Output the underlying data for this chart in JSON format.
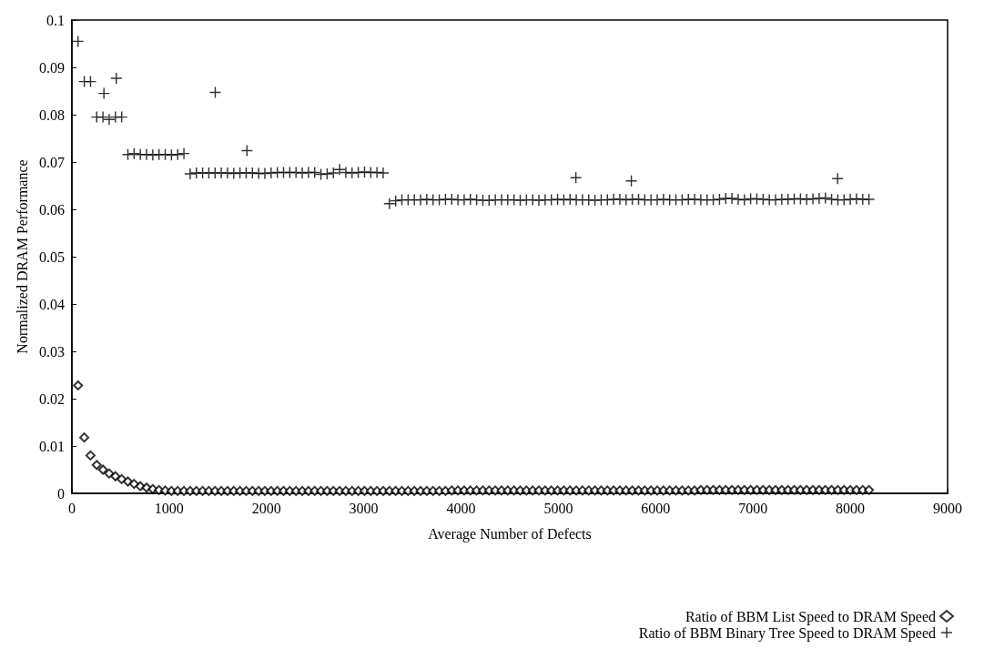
{
  "chart_data": {
    "type": "scatter",
    "xlabel": "Average Number of Defects",
    "ylabel": "Normalized DRAM Performance",
    "xlim": [
      0,
      9000
    ],
    "xticks": [
      0,
      1000,
      2000,
      3000,
      4000,
      5000,
      6000,
      7000,
      8000,
      9000
    ],
    "ylim": [
      0,
      0.1
    ],
    "yticks": [
      0,
      0.01,
      0.02,
      0.03,
      0.04,
      0.05,
      0.06,
      0.07,
      0.08,
      0.09,
      0.1
    ],
    "grid": false,
    "legend": "bottom right",
    "series": [
      {
        "name": "Ratio of BBM List Speed to DRAM Speed",
        "color": "#000000",
        "marker": "diamond",
        "x": [
          64,
          128,
          192,
          256,
          320,
          384,
          448,
          512,
          576,
          640,
          704,
          768,
          832,
          896,
          960,
          1024,
          1088,
          1152,
          1216,
          1280,
          1344,
          1408,
          1472,
          1536,
          1600,
          1664,
          1728,
          1792,
          1856,
          1920,
          1984,
          2048,
          2112,
          2176,
          2240,
          2304,
          2368,
          2432,
          2496,
          2560,
          2624,
          2688,
          2752,
          2816,
          2880,
          2944,
          3008,
          3072,
          3136,
          3200,
          3264,
          3328,
          3392,
          3456,
          3520,
          3584,
          3648,
          3712,
          3776,
          3840,
          3904,
          3968,
          4032,
          4096,
          4160,
          4224,
          4288,
          4352,
          4416,
          4480,
          4544,
          4608,
          4672,
          4736,
          4800,
          4864,
          4928,
          4992,
          5056,
          5120,
          5184,
          5248,
          5312,
          5376,
          5440,
          5504,
          5568,
          5632,
          5696,
          5760,
          5824,
          5888,
          5952,
          6016,
          6080,
          6144,
          6208,
          6272,
          6336,
          6400,
          6464,
          6528,
          6592,
          6656,
          6720,
          6784,
          6848,
          6912,
          6976,
          7040,
          7104,
          7168,
          7232,
          7296,
          7360,
          7424,
          7488,
          7552,
          7616,
          7680,
          7744,
          7808,
          7872,
          7936,
          8000,
          8064,
          8128,
          8192
        ],
        "values": [
          0.0228,
          0.0118,
          0.008,
          0.006,
          0.005,
          0.0042,
          0.0036,
          0.003,
          0.0025,
          0.002,
          0.0015,
          0.0012,
          0.0009,
          0.0007,
          0.0006,
          0.0005,
          0.0005,
          0.0005,
          0.0005,
          0.0005,
          0.0005,
          0.0005,
          0.0005,
          0.0005,
          0.0005,
          0.0005,
          0.0005,
          0.0005,
          0.0005,
          0.0005,
          0.0005,
          0.0005,
          0.0005,
          0.0005,
          0.0005,
          0.0005,
          0.0005,
          0.0005,
          0.0005,
          0.0005,
          0.0005,
          0.0005,
          0.0005,
          0.0005,
          0.0005,
          0.0005,
          0.0005,
          0.0005,
          0.0005,
          0.0005,
          0.0005,
          0.0005,
          0.0005,
          0.0005,
          0.0005,
          0.0005,
          0.0005,
          0.0005,
          0.0005,
          0.0005,
          0.0006,
          0.0006,
          0.0006,
          0.0006,
          0.0006,
          0.0006,
          0.0006,
          0.0006,
          0.0006,
          0.0006,
          0.0006,
          0.0006,
          0.0006,
          0.0006,
          0.0006,
          0.0006,
          0.0006,
          0.0006,
          0.0006,
          0.0006,
          0.0006,
          0.0006,
          0.0006,
          0.0006,
          0.0006,
          0.0006,
          0.0006,
          0.0006,
          0.0006,
          0.0006,
          0.0006,
          0.0006,
          0.0006,
          0.0006,
          0.0006,
          0.0006,
          0.0006,
          0.0006,
          0.0006,
          0.0006,
          0.0007,
          0.0007,
          0.0007,
          0.0007,
          0.0007,
          0.0007,
          0.0007,
          0.0007,
          0.0007,
          0.0007,
          0.0007,
          0.0007,
          0.0007,
          0.0007,
          0.0007,
          0.0007,
          0.0007,
          0.0007,
          0.0007,
          0.0007,
          0.0007,
          0.0007,
          0.0007,
          0.0007,
          0.0007,
          0.0007,
          0.0007,
          0.0007
        ]
      },
      {
        "name": "Ratio of BBM Binary Tree Speed to DRAM Speed",
        "color": "#000000",
        "marker": "cross",
        "x": [
          64,
          128,
          192,
          256,
          320,
          384,
          448,
          512,
          576,
          640,
          704,
          768,
          832,
          896,
          960,
          1024,
          1088,
          1152,
          1216,
          1280,
          1344,
          1408,
          1472,
          1536,
          1600,
          1664,
          1728,
          1792,
          1856,
          1920,
          1984,
          2048,
          2112,
          2176,
          2240,
          2304,
          2368,
          2432,
          2496,
          2560,
          2624,
          2688,
          2752,
          2816,
          2880,
          2944,
          3008,
          3072,
          3136,
          3200,
          3264,
          3328,
          3392,
          3456,
          3520,
          3584,
          3648,
          3712,
          3776,
          3840,
          3904,
          3968,
          4032,
          4096,
          4160,
          4224,
          4288,
          4352,
          4416,
          4480,
          4544,
          4608,
          4672,
          4736,
          4800,
          4864,
          4928,
          4992,
          5056,
          5120,
          5184,
          5248,
          5312,
          5376,
          5440,
          5504,
          5568,
          5632,
          5696,
          5760,
          5824,
          5888,
          5952,
          6016,
          6080,
          6144,
          6208,
          6272,
          6336,
          6400,
          6464,
          6528,
          6592,
          6656,
          6720,
          6784,
          6848,
          6912,
          6976,
          7040,
          7104,
          7168,
          7232,
          7296,
          7360,
          7424,
          7488,
          7552,
          7616,
          7680,
          7744,
          7808,
          7872,
          7936,
          8000,
          8064,
          8128,
          8192,
          330,
          457,
          1474,
          1800,
          5180,
          5750,
          7870
        ],
        "values": [
          0.0955,
          0.087,
          0.087,
          0.0795,
          0.0795,
          0.079,
          0.0795,
          0.0795,
          0.0716,
          0.0718,
          0.0716,
          0.0716,
          0.0715,
          0.0716,
          0.0716,
          0.0715,
          0.0716,
          0.0718,
          0.0675,
          0.0677,
          0.0677,
          0.0677,
          0.0677,
          0.0677,
          0.0677,
          0.0676,
          0.0677,
          0.0677,
          0.0677,
          0.0676,
          0.0676,
          0.0677,
          0.0678,
          0.0678,
          0.0678,
          0.0678,
          0.0677,
          0.0678,
          0.0678,
          0.0674,
          0.0675,
          0.0677,
          0.0684,
          0.0678,
          0.0677,
          0.0678,
          0.0679,
          0.0678,
          0.0678,
          0.0677,
          0.0612,
          0.0618,
          0.062,
          0.062,
          0.062,
          0.062,
          0.0621,
          0.062,
          0.062,
          0.0621,
          0.0621,
          0.062,
          0.062,
          0.0621,
          0.062,
          0.0619,
          0.0619,
          0.062,
          0.062,
          0.062,
          0.062,
          0.0619,
          0.062,
          0.062,
          0.0619,
          0.062,
          0.062,
          0.0621,
          0.062,
          0.0621,
          0.062,
          0.062,
          0.062,
          0.0619,
          0.062,
          0.062,
          0.0621,
          0.0621,
          0.062,
          0.0621,
          0.0621,
          0.062,
          0.062,
          0.062,
          0.0621,
          0.062,
          0.062,
          0.062,
          0.0621,
          0.0621,
          0.062,
          0.062,
          0.062,
          0.0621,
          0.0623,
          0.0623,
          0.0621,
          0.062,
          0.0622,
          0.0622,
          0.0621,
          0.062,
          0.062,
          0.0621,
          0.0621,
          0.0622,
          0.0622,
          0.0621,
          0.0622,
          0.0623,
          0.0624,
          0.0621,
          0.062,
          0.062,
          0.0621,
          0.0622,
          0.0621,
          0.0621,
          0.0845,
          0.0877,
          0.0847,
          0.0724,
          0.0667,
          0.066,
          0.0665
        ]
      }
    ]
  }
}
